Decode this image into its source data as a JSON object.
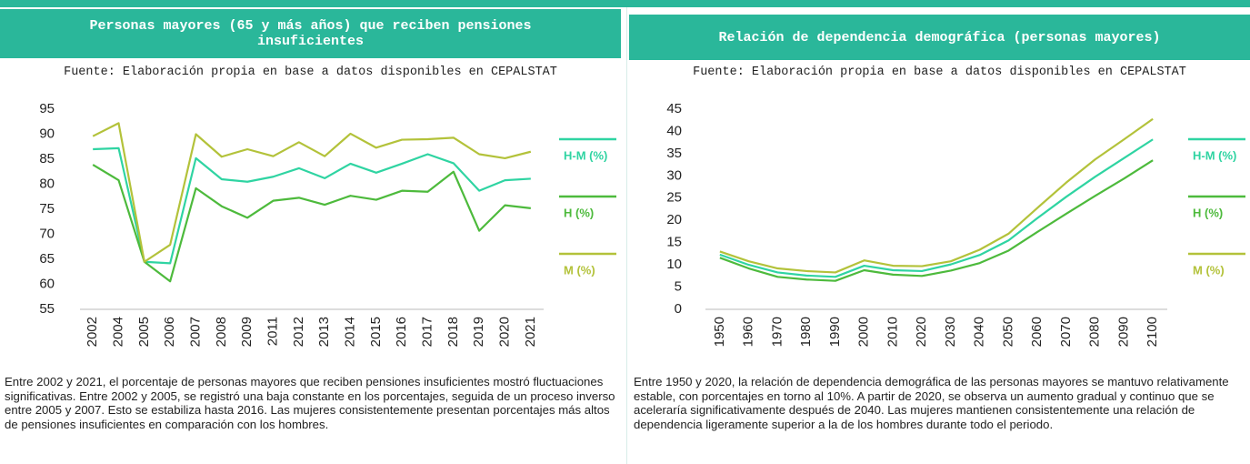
{
  "chart_data": [
    {
      "type": "line",
      "title": "Personas mayores (65 y más años) que reciben pensiones insuficientes",
      "source": "Fuente: Elaboración propia en base a datos disponibles en CEPALSTAT",
      "categories": [
        "2002",
        "2004",
        "2005",
        "2006",
        "2007",
        "2008",
        "2009",
        "2011",
        "2012",
        "2013",
        "2014",
        "2015",
        "2016",
        "2017",
        "2018",
        "2019",
        "2020",
        "2021"
      ],
      "series": [
        {
          "name": "H-M (%)",
          "color": "#2fd4a2",
          "values": [
            87,
            87.2,
            64.5,
            64.2,
            85.2,
            81,
            80.5,
            81.5,
            83.2,
            81.2,
            84.1,
            82.3,
            84.1,
            86,
            84.2,
            78.7,
            80.8,
            81.1
          ]
        },
        {
          "name": "H (%)",
          "color": "#4dba3c",
          "values": [
            83.9,
            80.8,
            64.5,
            60.6,
            79.2,
            75.6,
            73.3,
            76.7,
            77.3,
            75.9,
            77.7,
            76.9,
            78.7,
            78.5,
            82.5,
            70.7,
            75.8,
            75.2
          ]
        },
        {
          "name": "M (%)",
          "color": "#b3c23a",
          "values": [
            89.6,
            92.2,
            64.5,
            67.9,
            90,
            85.5,
            87,
            85.6,
            88.4,
            85.6,
            90.1,
            87.3,
            88.9,
            89,
            89.3,
            86,
            85.2,
            86.5
          ]
        }
      ],
      "ylim": [
        55,
        95
      ],
      "yticks": [
        55,
        60,
        65,
        70,
        75,
        80,
        85,
        90,
        95
      ],
      "description": "Entre 2002 y 2021, el porcentaje de personas mayores que reciben pensiones insuficientes mostró fluctuaciones significativas. Entre 2002 y 2005, se registró una baja constante en los porcentajes, seguida de un proceso inverso entre 2005 y 2007. Esto se estabiliza hasta 2016. Las mujeres consistentemente presentan porcentajes más altos de pensiones insuficientes en comparación con los hombres."
    },
    {
      "type": "line",
      "title": "Relación de dependencia demográfica (personas mayores)",
      "source": "Fuente: Elaboración propia en base a datos disponibles en CEPALSTAT",
      "categories": [
        "1950",
        "1960",
        "1970",
        "1980",
        "1990",
        "2000",
        "2010",
        "2020",
        "2030",
        "2040",
        "2050",
        "2060",
        "2070",
        "2080",
        "2090",
        "2100"
      ],
      "series": [
        {
          "name": "H-M (%)",
          "color": "#2fd4a2",
          "values": [
            12.3,
            10,
            8.3,
            7.6,
            7.3,
            9.8,
            8.8,
            8.6,
            10.1,
            12.2,
            15.5,
            20.5,
            25.3,
            29.8,
            34,
            38.2
          ]
        },
        {
          "name": "H (%)",
          "color": "#4dba3c",
          "values": [
            11.6,
            9.2,
            7.3,
            6.7,
            6.4,
            8.8,
            7.8,
            7.5,
            8.7,
            10.4,
            13.2,
            17.4,
            21.5,
            25.5,
            29.4,
            33.5
          ]
        },
        {
          "name": "M (%)",
          "color": "#b3c23a",
          "values": [
            13,
            10.8,
            9.2,
            8.6,
            8.3,
            11,
            9.8,
            9.7,
            10.8,
            13.4,
            17,
            22.8,
            28.5,
            33.7,
            38.2,
            42.8
          ]
        }
      ],
      "ylim": [
        0,
        45
      ],
      "yticks": [
        0,
        5,
        10,
        15,
        20,
        25,
        30,
        35,
        40,
        45
      ],
      "description": "Entre 1950 y 2020, la relación de dependencia demográfica de las personas mayores se mantuvo relativamente estable, con porcentajes en torno al 10%. A partir de 2020, se observa un aumento gradual y continuo que se aceleraría significativamente después de 2040. Las mujeres mantienen consistentemente una relación de dependencia ligeramente superior a la de los hombres durante todo el periodo."
    }
  ]
}
